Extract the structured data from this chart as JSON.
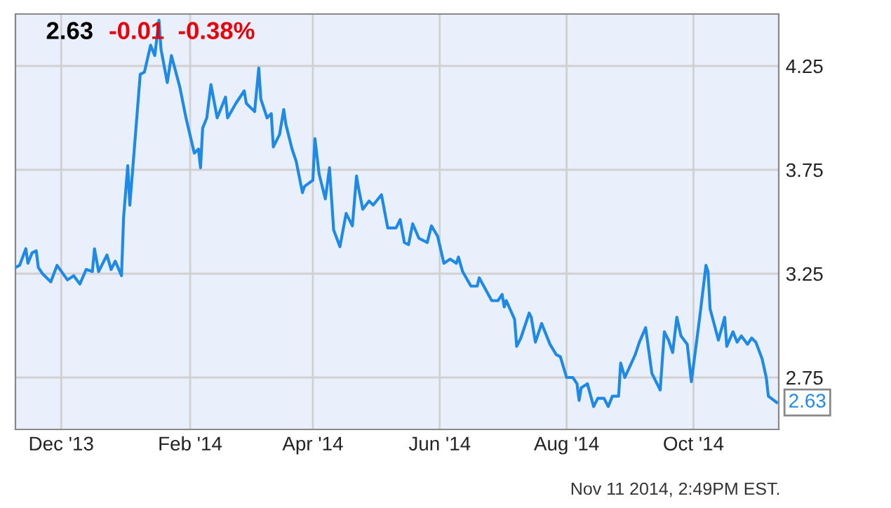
{
  "chart_data": {
    "type": "line",
    "title": "2.63",
    "subtitle": "-0.01  -0.38%",
    "x": [
      "2013-11-09",
      "2013-11-11",
      "2013-11-14",
      "2013-11-15",
      "2013-11-17",
      "2013-11-19",
      "2013-11-20",
      "2013-11-22",
      "2013-11-26",
      "2013-11-29",
      "2013-12-04",
      "2013-12-07",
      "2013-12-10",
      "2013-12-13",
      "2013-12-16",
      "2013-12-17",
      "2013-12-19",
      "2013-12-23",
      "2013-12-25",
      "2013-12-27",
      "2013-12-30",
      "2013-12-31",
      "2014-01-02",
      "2014-01-03",
      "2014-01-05",
      "2014-01-08",
      "2014-01-10",
      "2014-01-13",
      "2014-01-15",
      "2014-01-17",
      "2014-01-18",
      "2014-01-21",
      "2014-01-23",
      "2014-01-27",
      "2014-01-30",
      "2014-02-03",
      "2014-02-05",
      "2014-02-06",
      "2014-02-07",
      "2014-02-09",
      "2014-02-11",
      "2014-02-14",
      "2014-02-18",
      "2014-02-19",
      "2014-02-23",
      "2014-02-27",
      "2014-02-28",
      "2014-03-04",
      "2014-03-06",
      "2014-03-07",
      "2014-03-10",
      "2014-03-12",
      "2014-03-13",
      "2014-03-16",
      "2014-03-18",
      "2014-03-19",
      "2014-03-22",
      "2014-03-24",
      "2014-03-27",
      "2014-03-28",
      "2014-04-01",
      "2014-04-02",
      "2014-04-04",
      "2014-04-07",
      "2014-04-09",
      "2014-04-11",
      "2014-04-14",
      "2014-04-17",
      "2014-04-20",
      "2014-04-22",
      "2014-04-23",
      "2014-04-25",
      "2014-04-28",
      "2014-04-30",
      "2014-05-04",
      "2014-05-07",
      "2014-05-11",
      "2014-05-13",
      "2014-05-15",
      "2014-05-17",
      "2014-05-19",
      "2014-05-22",
      "2014-05-26",
      "2014-05-28",
      "2014-05-31",
      "2014-06-03",
      "2014-06-06",
      "2014-06-09",
      "2014-06-10",
      "2014-06-12",
      "2014-06-16",
      "2014-06-19",
      "2014-06-20",
      "2014-06-26",
      "2014-06-29",
      "2014-07-01",
      "2014-07-02",
      "2014-07-03",
      "2014-07-07",
      "2014-07-08",
      "2014-07-10",
      "2014-07-14",
      "2014-07-15",
      "2014-07-17",
      "2014-07-20",
      "2014-07-24",
      "2014-07-27",
      "2014-07-29",
      "2014-08-01",
      "2014-08-04",
      "2014-08-06",
      "2014-08-07",
      "2014-08-08",
      "2014-08-11",
      "2014-08-14",
      "2014-08-16",
      "2014-08-19",
      "2014-08-21",
      "2014-08-23",
      "2014-08-26",
      "2014-08-27",
      "2014-08-29",
      "2014-09-03",
      "2014-09-05",
      "2014-09-08",
      "2014-09-11",
      "2014-09-15",
      "2014-09-17",
      "2014-09-19",
      "2014-09-21",
      "2014-09-23",
      "2014-09-25",
      "2014-09-28",
      "2014-09-30",
      "2014-10-04",
      "2014-10-07",
      "2014-10-08",
      "2014-10-09",
      "2014-10-13",
      "2014-10-16",
      "2014-10-17",
      "2014-10-20",
      "2014-10-22",
      "2014-10-24",
      "2014-10-27",
      "2014-10-29",
      "2014-10-31",
      "2014-11-03",
      "2014-11-05",
      "2014-11-06",
      "2014-11-10"
    ],
    "series": [
      {
        "color": "#1e8ae6",
        "values": [
          3.28,
          3.29,
          3.37,
          3.3,
          3.35,
          3.36,
          3.28,
          3.25,
          3.21,
          3.29,
          3.22,
          3.24,
          3.2,
          3.27,
          3.26,
          3.37,
          3.26,
          3.34,
          3.27,
          3.31,
          3.24,
          3.52,
          3.77,
          3.58,
          3.83,
          4.21,
          4.22,
          4.35,
          4.3,
          4.47,
          4.33,
          4.17,
          4.3,
          4.15,
          4.0,
          3.83,
          3.85,
          3.76,
          3.95,
          4.0,
          4.16,
          4.0,
          4.1,
          4.0,
          4.07,
          4.13,
          4.07,
          4.03,
          4.24,
          4.09,
          4.0,
          4.02,
          3.86,
          3.92,
          4.04,
          3.97,
          3.85,
          3.79,
          3.64,
          3.67,
          3.7,
          3.9,
          3.73,
          3.61,
          3.76,
          3.46,
          3.38,
          3.54,
          3.48,
          3.72,
          3.66,
          3.56,
          3.6,
          3.58,
          3.63,
          3.47,
          3.47,
          3.51,
          3.4,
          3.39,
          3.49,
          3.42,
          3.4,
          3.48,
          3.43,
          3.3,
          3.32,
          3.3,
          3.33,
          3.26,
          3.19,
          3.19,
          3.23,
          3.12,
          3.12,
          3.15,
          3.09,
          3.12,
          3.03,
          2.9,
          2.94,
          3.06,
          3.04,
          2.92,
          3.01,
          2.91,
          2.86,
          2.85,
          2.75,
          2.75,
          2.72,
          2.64,
          2.7,
          2.72,
          2.61,
          2.65,
          2.65,
          2.61,
          2.66,
          2.66,
          2.82,
          2.75,
          2.86,
          2.92,
          2.99,
          2.77,
          2.69,
          2.97,
          2.93,
          2.87,
          3.04,
          2.95,
          2.91,
          2.73,
          3.04,
          3.29,
          3.26,
          3.08,
          2.93,
          3.04,
          2.9,
          2.97,
          2.92,
          2.95,
          2.91,
          2.94,
          2.92,
          2.84,
          2.75,
          2.66,
          2.63
        ]
      }
    ],
    "xlim": [
      "2013-11-09",
      "2014-11-11"
    ],
    "xticks": [
      {
        "value": "2013-12-01",
        "label": "Dec '13"
      },
      {
        "value": "2014-02-01",
        "label": "Feb '14"
      },
      {
        "value": "2014-04-01",
        "label": "Apr '14"
      },
      {
        "value": "2014-06-01",
        "label": "Jun '14"
      },
      {
        "value": "2014-08-01",
        "label": "Aug '14"
      },
      {
        "value": "2014-10-01",
        "label": "Oct '14"
      }
    ],
    "ylim": [
      2.5,
      4.5
    ],
    "yticks": [
      2.75,
      3.25,
      3.75,
      4.25
    ],
    "grid": true,
    "marker": "none",
    "line_style": "solid",
    "annotations": [
      {
        "text": "2.63",
        "x": "2014-11-10",
        "y": 2.63
      },
      "Nov 11 2014, 2:49PM EST."
    ]
  }
}
